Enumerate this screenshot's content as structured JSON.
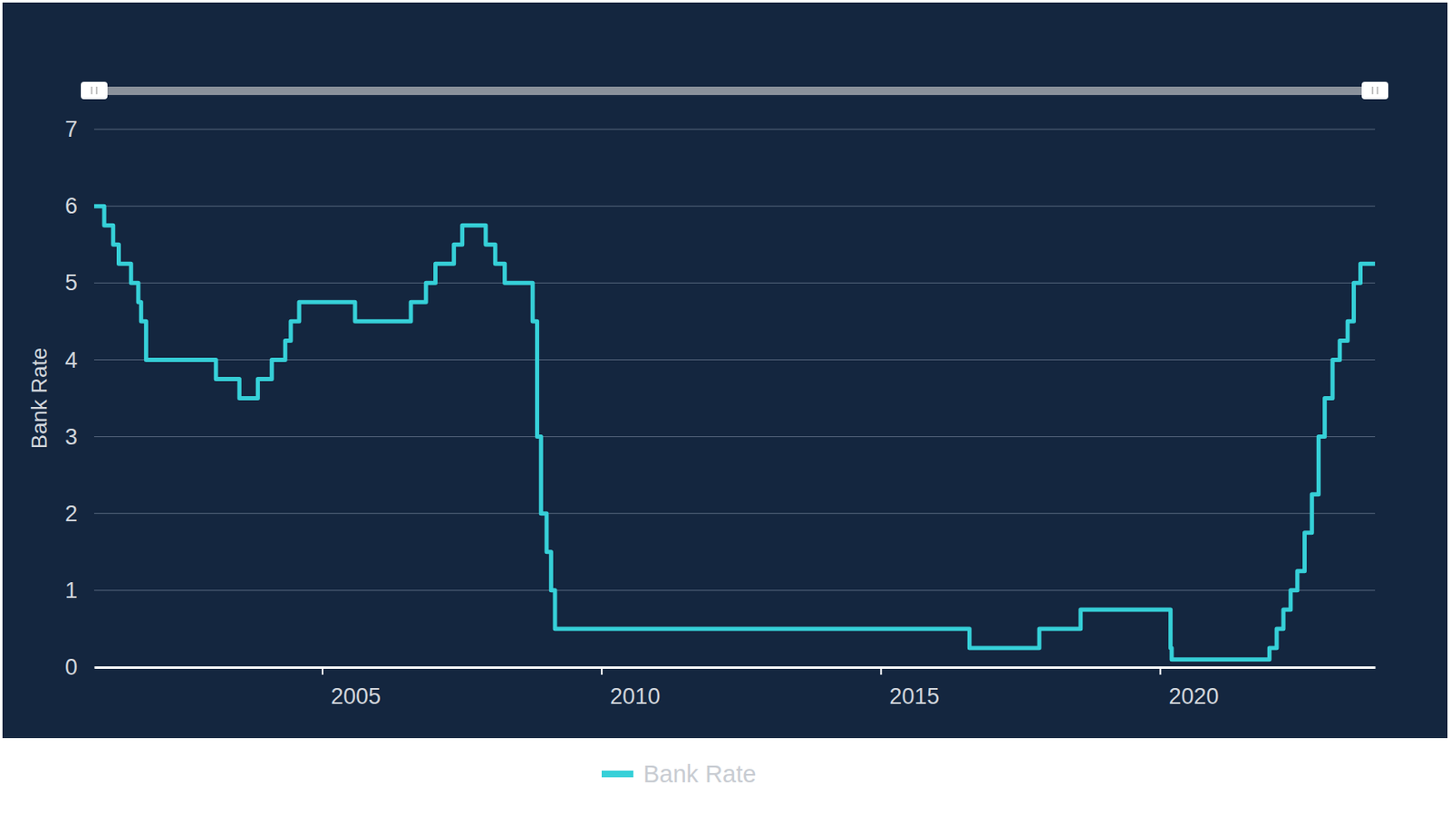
{
  "chart_data": {
    "type": "line",
    "y_label": "Bank Rate",
    "x": [
      2000.92,
      2001.1,
      2001.26,
      2001.36,
      2001.58,
      2001.71,
      2001.76,
      2001.85,
      2003.1,
      2003.52,
      2003.85,
      2004.1,
      2004.34,
      2004.44,
      2004.59,
      2005.59,
      2006.59,
      2006.86,
      2007.03,
      2007.36,
      2007.51,
      2007.93,
      2008.1,
      2008.27,
      2008.77,
      2008.85,
      2008.92,
      2009.02,
      2009.1,
      2009.17,
      2016.59,
      2017.84,
      2018.58,
      2020.19,
      2020.21,
      2021.96,
      2022.09,
      2022.21,
      2022.34,
      2022.46,
      2022.59,
      2022.72,
      2022.84,
      2022.95,
      2023.09,
      2023.22,
      2023.36,
      2023.47,
      2023.59,
      2023.85
    ],
    "series": [
      {
        "name": "Bank Rate",
        "color": "#36d0d8",
        "line_style": "step",
        "values": [
          6.0,
          5.75,
          5.5,
          5.25,
          5.0,
          4.75,
          4.5,
          4.0,
          3.75,
          3.5,
          3.75,
          4.0,
          4.25,
          4.5,
          4.75,
          4.5,
          4.75,
          5.0,
          5.25,
          5.5,
          5.75,
          5.5,
          5.25,
          5.0,
          4.5,
          3.0,
          2.0,
          1.5,
          1.0,
          0.5,
          0.25,
          0.5,
          0.75,
          0.25,
          0.1,
          0.25,
          0.5,
          0.75,
          1.0,
          1.25,
          1.75,
          2.25,
          3.0,
          3.5,
          4.0,
          4.25,
          4.5,
          5.0,
          5.25,
          5.25
        ]
      }
    ],
    "xlim": [
      2000.92,
      2023.85
    ],
    "xticks": [
      2005,
      2010,
      2015,
      2020
    ],
    "ylim": [
      0,
      7
    ],
    "yticks": [
      0,
      1,
      2,
      3,
      4,
      5,
      6,
      7
    ],
    "grid": true,
    "legend": "bottom"
  }
}
